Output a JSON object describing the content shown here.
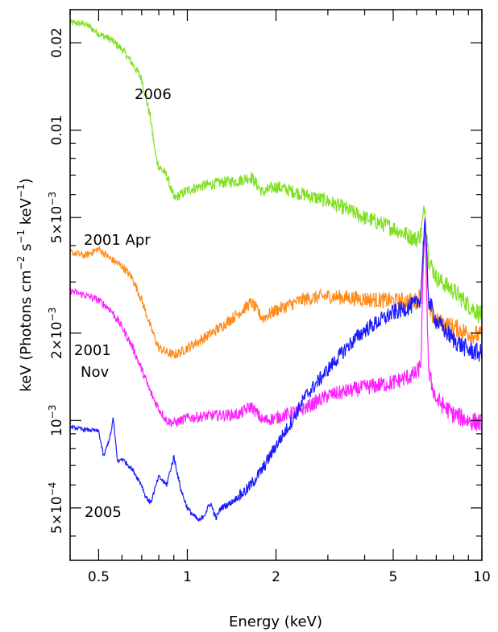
{
  "chart_data": {
    "type": "line",
    "title": "",
    "xlabel": "Energy (keV)",
    "ylabel_parts": {
      "main": "keV (Photons cm",
      "exp1": "−2",
      "mid": " s",
      "exp2": "−1",
      "mid2": " keV",
      "exp3": "−1",
      "end": ")"
    },
    "x_scale": "log",
    "y_scale": "log",
    "xlim": [
      0.4,
      10
    ],
    "ylim": [
      0.00033,
      0.026
    ],
    "x_ticks": [
      {
        "value": 0.5,
        "label": "0.5"
      },
      {
        "value": 1,
        "label": "1"
      },
      {
        "value": 2,
        "label": "2"
      },
      {
        "value": 5,
        "label": "5"
      },
      {
        "value": 10,
        "label": "10"
      }
    ],
    "y_ticks": [
      {
        "value": 0.0005,
        "mant": "5×10",
        "exp": "−4"
      },
      {
        "value": 0.001,
        "mant": "10",
        "exp": "−3"
      },
      {
        "value": 0.002,
        "mant": "2×10",
        "exp": "−3"
      },
      {
        "value": 0.005,
        "mant": "5×10",
        "exp": "−3"
      },
      {
        "value": 0.01,
        "mant": "0.01",
        "exp": ""
      },
      {
        "value": 0.02,
        "mant": "0.02",
        "exp": ""
      }
    ],
    "grid": false,
    "legend": "none",
    "series": [
      {
        "name": "2006",
        "color": "#7fe020",
        "points": [
          [
            0.4,
            0.0235
          ],
          [
            0.45,
            0.0232
          ],
          [
            0.5,
            0.0215
          ],
          [
            0.55,
            0.0205
          ],
          [
            0.6,
            0.019
          ],
          [
            0.65,
            0.017
          ],
          [
            0.7,
            0.015
          ],
          [
            0.75,
            0.011
          ],
          [
            0.78,
            0.0082
          ],
          [
            0.8,
            0.0075
          ],
          [
            0.85,
            0.007
          ],
          [
            0.88,
            0.0063
          ],
          [
            0.9,
            0.0058
          ],
          [
            0.95,
            0.006
          ],
          [
            1.0,
            0.0062
          ],
          [
            1.1,
            0.0064
          ],
          [
            1.3,
            0.0066
          ],
          [
            1.5,
            0.0067
          ],
          [
            1.65,
            0.0069
          ],
          [
            1.8,
            0.0061
          ],
          [
            2.0,
            0.0064
          ],
          [
            2.5,
            0.006
          ],
          [
            3.0,
            0.0057
          ],
          [
            4.0,
            0.005
          ],
          [
            5.0,
            0.0046
          ],
          [
            6.0,
            0.0042
          ],
          [
            6.2,
            0.0044
          ],
          [
            6.4,
            0.0055
          ],
          [
            6.6,
            0.0036
          ],
          [
            7.0,
            0.0031
          ],
          [
            8.0,
            0.0028
          ],
          [
            9.0,
            0.0025
          ],
          [
            10.0,
            0.0023
          ]
        ]
      },
      {
        "name": "2001 Apr",
        "color": "#ff8c1a",
        "points": [
          [
            0.4,
            0.0038
          ],
          [
            0.45,
            0.0037
          ],
          [
            0.5,
            0.0039
          ],
          [
            0.55,
            0.0036
          ],
          [
            0.6,
            0.0034
          ],
          [
            0.65,
            0.0031
          ],
          [
            0.7,
            0.0026
          ],
          [
            0.75,
            0.0021
          ],
          [
            0.8,
            0.00178
          ],
          [
            0.85,
            0.00172
          ],
          [
            0.9,
            0.00168
          ],
          [
            0.95,
            0.00172
          ],
          [
            1.0,
            0.00178
          ],
          [
            1.1,
            0.00188
          ],
          [
            1.3,
            0.0021
          ],
          [
            1.5,
            0.00235
          ],
          [
            1.65,
            0.00255
          ],
          [
            1.8,
            0.00225
          ],
          [
            2.0,
            0.0024
          ],
          [
            2.5,
            0.00262
          ],
          [
            3.0,
            0.00268
          ],
          [
            4.0,
            0.00262
          ],
          [
            5.0,
            0.00258
          ],
          [
            6.0,
            0.00258
          ],
          [
            6.2,
            0.0027
          ],
          [
            6.4,
            0.005
          ],
          [
            6.6,
            0.0024
          ],
          [
            7.0,
            0.0022
          ],
          [
            8.0,
            0.0021
          ],
          [
            9.0,
            0.002
          ],
          [
            10.0,
            0.00195
          ]
        ]
      },
      {
        "name": "2001 Nov",
        "color": "#ff20ff",
        "points": [
          [
            0.4,
            0.0028
          ],
          [
            0.45,
            0.0027
          ],
          [
            0.5,
            0.0026
          ],
          [
            0.55,
            0.0024
          ],
          [
            0.6,
            0.0021
          ],
          [
            0.65,
            0.0018
          ],
          [
            0.7,
            0.0015
          ],
          [
            0.75,
            0.00125
          ],
          [
            0.8,
            0.0011
          ],
          [
            0.85,
            0.001
          ],
          [
            0.9,
            0.00098
          ],
          [
            0.95,
            0.001
          ],
          [
            1.0,
            0.00102
          ],
          [
            1.2,
            0.00104
          ],
          [
            1.5,
            0.00105
          ],
          [
            1.65,
            0.00112
          ],
          [
            1.8,
            0.001
          ],
          [
            2.0,
            0.00102
          ],
          [
            2.5,
            0.0011
          ],
          [
            3.0,
            0.00122
          ],
          [
            4.0,
            0.0013
          ],
          [
            5.0,
            0.00135
          ],
          [
            6.0,
            0.00145
          ],
          [
            6.2,
            0.00155
          ],
          [
            6.4,
            0.005
          ],
          [
            6.6,
            0.00145
          ],
          [
            7.0,
            0.00118
          ],
          [
            8.0,
            0.00105
          ],
          [
            9.0,
            0.001
          ],
          [
            10.0,
            0.00098
          ]
        ]
      },
      {
        "name": "2005",
        "color": "#1a1aff",
        "points": [
          [
            0.4,
            0.00095
          ],
          [
            0.45,
            0.00093
          ],
          [
            0.5,
            0.00092
          ],
          [
            0.52,
            0.00075
          ],
          [
            0.55,
            0.0009
          ],
          [
            0.56,
            0.00102
          ],
          [
            0.58,
            0.00072
          ],
          [
            0.6,
            0.00074
          ],
          [
            0.65,
            0.00068
          ],
          [
            0.7,
            0.0006
          ],
          [
            0.72,
            0.00055
          ],
          [
            0.75,
            0.00052
          ],
          [
            0.8,
            0.00064
          ],
          [
            0.85,
            0.0006
          ],
          [
            0.9,
            0.00075
          ],
          [
            0.95,
            0.00058
          ],
          [
            1.0,
            0.0005
          ],
          [
            1.05,
            0.00047
          ],
          [
            1.1,
            0.00045
          ],
          [
            1.15,
            0.00048
          ],
          [
            1.2,
            0.00052
          ],
          [
            1.25,
            0.00046
          ],
          [
            1.3,
            0.0005
          ],
          [
            1.4,
            0.00052
          ],
          [
            1.5,
            0.00055
          ],
          [
            1.6,
            0.00058
          ],
          [
            1.8,
            0.00068
          ],
          [
            2.0,
            0.00082
          ],
          [
            2.3,
            0.00102
          ],
          [
            2.5,
            0.0012
          ],
          [
            3.0,
            0.0015
          ],
          [
            3.5,
            0.0018
          ],
          [
            4.0,
            0.00205
          ],
          [
            5.0,
            0.00235
          ],
          [
            6.0,
            0.00252
          ],
          [
            6.2,
            0.00265
          ],
          [
            6.4,
            0.005
          ],
          [
            6.6,
            0.0026
          ],
          [
            7.0,
            0.0022
          ],
          [
            8.0,
            0.0019
          ],
          [
            9.0,
            0.00175
          ],
          [
            10.0,
            0.0017
          ]
        ]
      }
    ],
    "annotations": [
      {
        "series": "2006",
        "lines": [
          "2006"
        ]
      },
      {
        "series": "2001 Apr",
        "lines": [
          "2001  Apr"
        ]
      },
      {
        "series": "2001 Nov",
        "lines": [
          "2001",
          "Nov"
        ]
      },
      {
        "series": "2005",
        "lines": [
          "2005"
        ]
      }
    ]
  }
}
